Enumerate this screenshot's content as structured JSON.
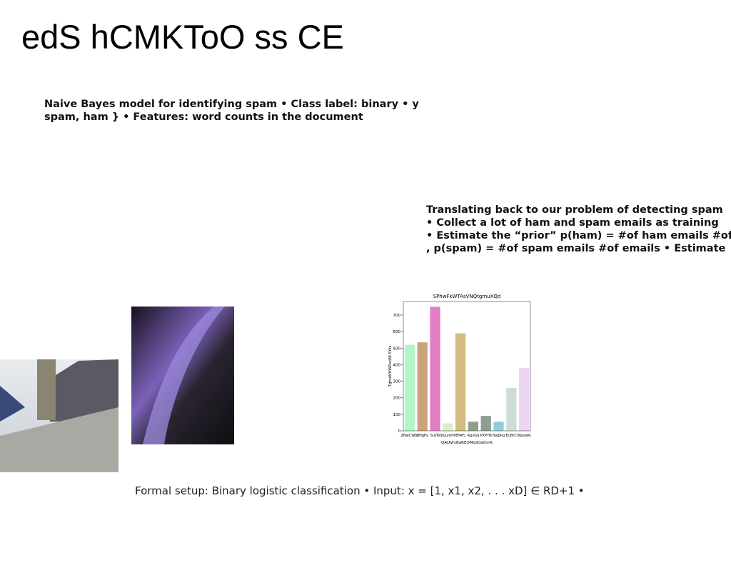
{
  "title": "edS hCMKToO ss CE",
  "block1": [
    "Naive Bayes model for identifying spam • Class label: binary • y",
    "spam, ham } • Features: word counts in the document"
  ],
  "block2": [
    "Translating back to our problem of detecting spam",
    "• Collect a lot of ham and spam emails as training",
    "• Estimate the “prior” p(ham) = #of ham emails #of",
    ", p(spam) = #of spam emails #of emails • Estimate"
  ],
  "footer": "Formal setup: Binary logistic classification • Input: x = [1, x1, x2, . . . xD] ∈ RD+1 •",
  "chart_data": {
    "type": "bar",
    "title": "SPhwFkWTAsVNQtgmuXQd",
    "xlabel": "QALWrsBaREOMsdDaQvrK",
    "ylabel": "TghoWhWRvoNI SYts",
    "categories": [
      "ZNwCWbt",
      "UHgPy",
      "SUJTe",
      "SKjumhP",
      "BYAFJ",
      "RgxGq",
      "PXPYN",
      "NsJbkg",
      "EuBrC",
      "WpswKl"
    ],
    "values": [
      520,
      535,
      750,
      45,
      590,
      55,
      90,
      55,
      260,
      380
    ],
    "colors": [
      "#b3f5c8",
      "#c9a27e",
      "#e07fc4",
      "#dbeec0",
      "#d4bd7e",
      "#8fa08a",
      "#8e9a94",
      "#8fcfdc",
      "#ccdcd9",
      "#ecd4f3"
    ],
    "ylim": [
      0,
      782
    ],
    "yticks": [
      0,
      100,
      200,
      300,
      400,
      500,
      600,
      700
    ]
  }
}
